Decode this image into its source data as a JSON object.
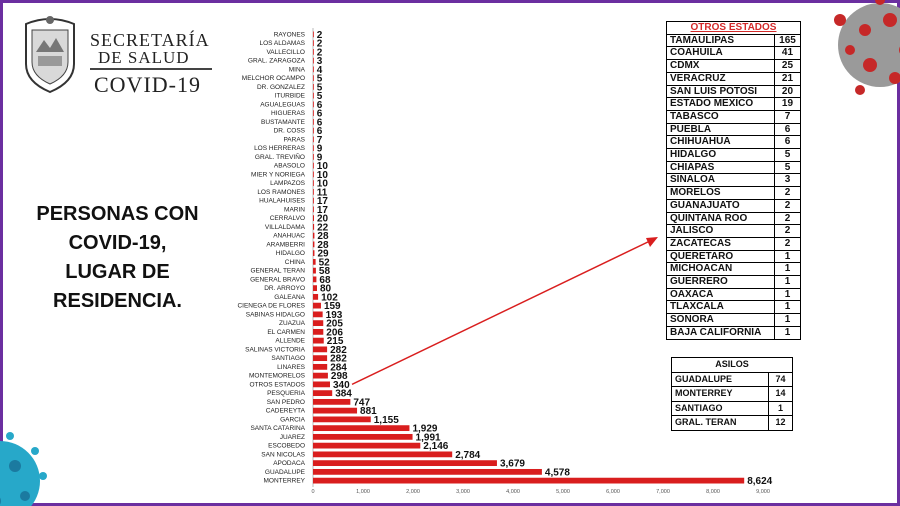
{
  "logo": {
    "org_line1": "SECRETARÍA",
    "org_line2": "DE SALUD",
    "org_line3": "COVID-19"
  },
  "headline": [
    "PERSONAS CON",
    "COVID-19,",
    "LUGAR DE",
    "RESIDENCIA."
  ],
  "colors": {
    "bar": "#d91e1e",
    "frame": "#6b2fa0",
    "arrow": "#d91e1e",
    "table_title": "#d42a2a"
  },
  "chart_data": {
    "type": "bar",
    "orientation": "horizontal",
    "categories": [
      "RAYONES",
      "LOS ALDAMAS",
      "VALLECILLO",
      "GRAL. ZARAGOZA",
      "MINA",
      "MELCHOR OCAMPO",
      "DR. GONZALEZ",
      "ITURBIDE",
      "AGUALEGUAS",
      "HIGUERAS",
      "BUSTAMANTE",
      "DR. COSS",
      "PARAS",
      "LOS HERRERAS",
      "GRAL. TREVIÑO",
      "ABASOLO",
      "MIER Y NORIEGA",
      "LAMPAZOS",
      "LOS RAMONES",
      "HUALAHUISES",
      "MARIN",
      "CERRALVO",
      "VILLALDAMA",
      "ANAHUAC",
      "ARAMBERRI",
      "HIDALGO",
      "CHINA",
      "GENERAL TERAN",
      "GENERAL BRAVO",
      "DR. ARROYO",
      "GALEANA",
      "CIENEGA DE FLORES",
      "SABINAS HIDALGO",
      "ZUAZUA",
      "EL CARMEN",
      "ALLENDE",
      "SALINAS VICTORIA",
      "SANTIAGO",
      "LINARES",
      "MONTEMORELOS",
      "OTROS ESTADOS",
      "PESQUERIA",
      "SAN PEDRO",
      "CADEREYTA",
      "GARCIA",
      "SANTA CATARINA",
      "JUAREZ",
      "ESCOBEDO",
      "SAN NICOLAS",
      "APODACA",
      "GUADALUPE",
      "MONTERREY"
    ],
    "values": [
      2,
      2,
      2,
      3,
      4,
      5,
      5,
      5,
      6,
      6,
      6,
      6,
      7,
      9,
      9,
      10,
      10,
      10,
      11,
      17,
      17,
      20,
      22,
      28,
      28,
      29,
      52,
      58,
      68,
      80,
      102,
      159,
      193,
      205,
      206,
      215,
      282,
      282,
      284,
      298,
      340,
      384,
      747,
      881,
      1155,
      1929,
      1991,
      2146,
      2784,
      3679,
      4578,
      8624
    ],
    "value_labels": [
      "2",
      "2",
      "2",
      "3",
      "4",
      "5",
      "5",
      "5",
      "6",
      "6",
      "6",
      "6",
      "7",
      "9",
      "9",
      "10",
      "10",
      "10",
      "11",
      "17",
      "17",
      "20",
      "22",
      "28",
      "28",
      "29",
      "52",
      "58",
      "68",
      "80",
      "102",
      "159",
      "193",
      "205",
      "206",
      "215",
      "282",
      "282",
      "284",
      "298",
      "340",
      "384",
      "747",
      "881",
      "1,155",
      "1,929",
      "1,991",
      "2,146",
      "2,784",
      "3,679",
      "4,578",
      "8,624"
    ],
    "x_ticks": [
      0,
      1000,
      2000,
      3000,
      4000,
      5000,
      6000,
      7000,
      8000,
      9000
    ],
    "x_tick_labels": [
      "0",
      "1,000",
      "2,000",
      "3,000",
      "4,000",
      "5,000",
      "6,000",
      "7,000",
      "8,000",
      "9,000"
    ],
    "xlim": [
      0,
      9000
    ],
    "grid": false,
    "legend": "none"
  },
  "otros_estados": {
    "title": "OTROS ESTADOS",
    "rows": [
      {
        "name": "TAMAULIPAS",
        "value": "165"
      },
      {
        "name": "COAHUILA",
        "value": "41"
      },
      {
        "name": "CDMX",
        "value": "25"
      },
      {
        "name": "VERACRUZ",
        "value": "21"
      },
      {
        "name": "SAN LUIS POTOSI",
        "value": "20"
      },
      {
        "name": "ESTADO MEXICO",
        "value": "19"
      },
      {
        "name": "TABASCO",
        "value": "7"
      },
      {
        "name": "PUEBLA",
        "value": "6"
      },
      {
        "name": "CHIHUAHUA",
        "value": "6"
      },
      {
        "name": "HIDALGO",
        "value": "5"
      },
      {
        "name": "CHIAPAS",
        "value": "5"
      },
      {
        "name": "SINALOA",
        "value": "3"
      },
      {
        "name": "MORELOS",
        "value": "2"
      },
      {
        "name": "GUANAJUATO",
        "value": "2"
      },
      {
        "name": "QUINTANA ROO",
        "value": "2"
      },
      {
        "name": "JALISCO",
        "value": "2"
      },
      {
        "name": "ZACATECAS",
        "value": "2"
      },
      {
        "name": "QUERETARO",
        "value": "1"
      },
      {
        "name": "MICHOACAN",
        "value": "1"
      },
      {
        "name": "GUERRERO",
        "value": "1"
      },
      {
        "name": "OAXACA",
        "value": "1"
      },
      {
        "name": "TLAXCALA",
        "value": "1"
      },
      {
        "name": "SONORA",
        "value": "1"
      },
      {
        "name": "BAJA CALIFORNIA",
        "value": "1"
      }
    ]
  },
  "asilos": {
    "title": "ASILOS",
    "rows": [
      {
        "name": "GUADALUPE",
        "value": "74"
      },
      {
        "name": "MONTERREY",
        "value": "14"
      },
      {
        "name": "SANTIAGO",
        "value": "1"
      },
      {
        "name": "GRAL. TERAN",
        "value": "12"
      }
    ]
  }
}
